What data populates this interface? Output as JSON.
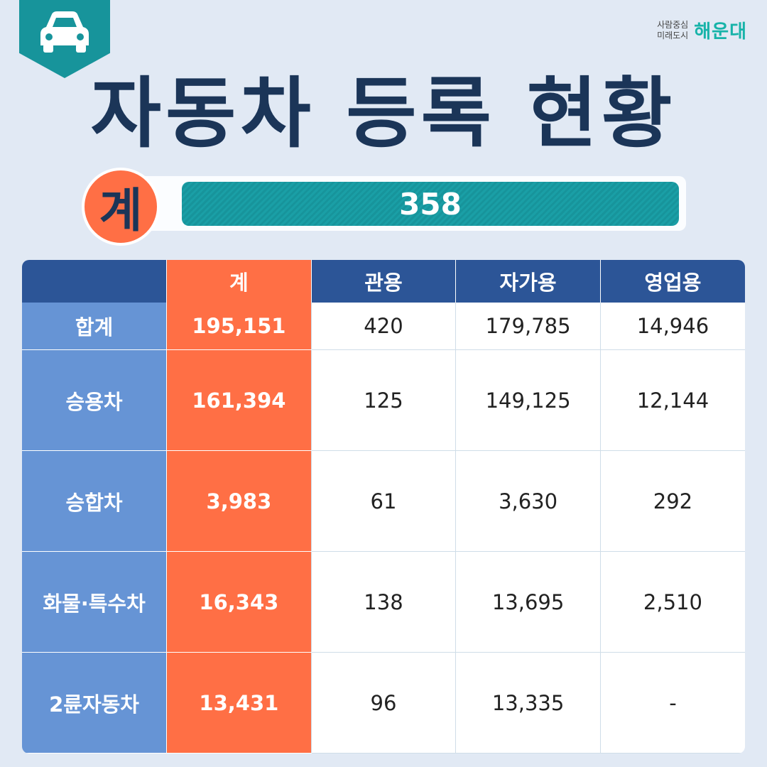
{
  "header": {
    "icon": "car-icon",
    "title": "자동차 등록 현황"
  },
  "logo": {
    "line1": "사람중심",
    "line2": "미래도시",
    "brand": "해운대"
  },
  "total": {
    "label": "계",
    "value": "358"
  },
  "table": {
    "columns": [
      "",
      "계",
      "관용",
      "자가용",
      "영업용"
    ],
    "rows": [
      {
        "label": "합계",
        "total": "195,151",
        "official": "420",
        "private": "179,785",
        "commercial": "14,946"
      },
      {
        "label": "승용차",
        "total": "161,394",
        "official": "125",
        "private": "149,125",
        "commercial": "12,144"
      },
      {
        "label": "승합차",
        "total": "3,983",
        "official": "61",
        "private": "3,630",
        "commercial": "292"
      },
      {
        "label": "화물·특수차",
        "total": "16,343",
        "official": "138",
        "private": "13,695",
        "commercial": "2,510"
      },
      {
        "label": "2륜자동차",
        "total": "13,431",
        "official": "96",
        "private": "13,335",
        "commercial": "-"
      }
    ]
  },
  "colors": {
    "background": "#e1e9f4",
    "teal": "#17949b",
    "navy": "#1b3558",
    "orange": "#ff6f45",
    "header_blue": "#2c5597",
    "row_blue": "#6694d5"
  }
}
